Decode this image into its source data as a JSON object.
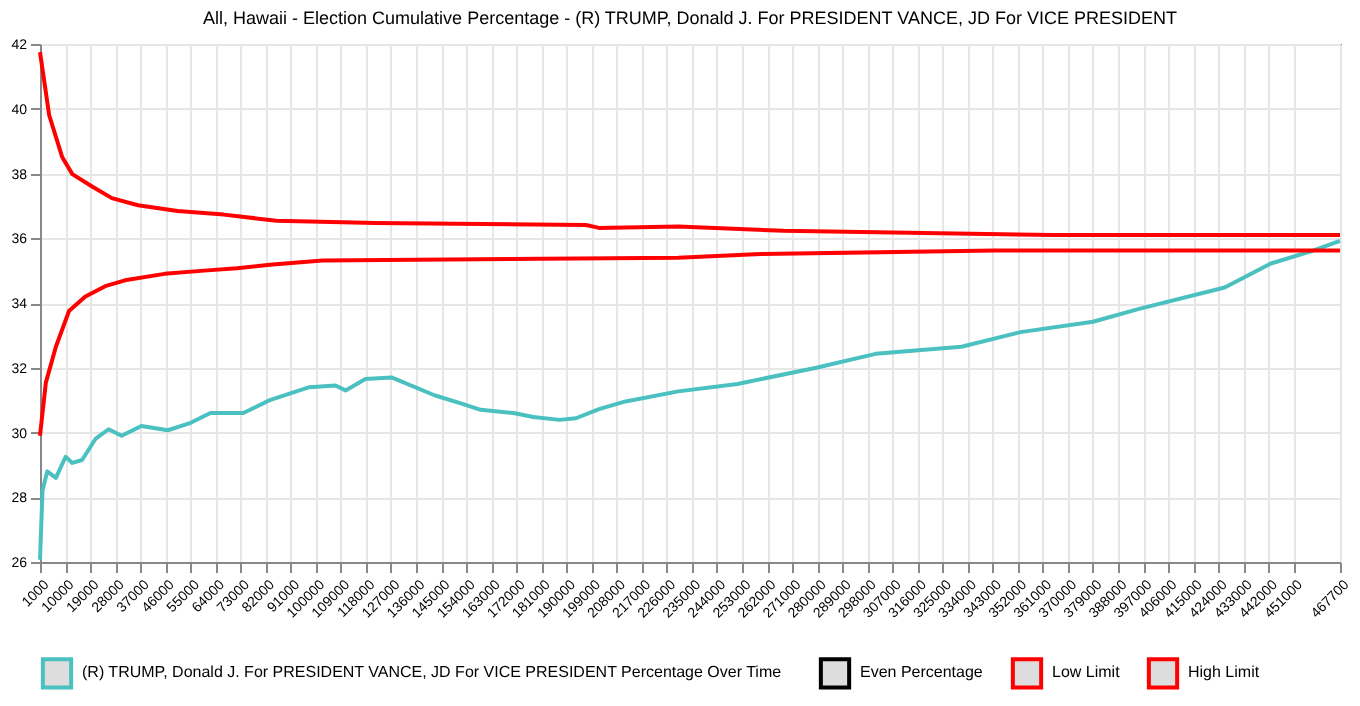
{
  "chart_data": {
    "type": "line",
    "title": "All, Hawaii - Election Cumulative Percentage - (R) TRUMP, Donald J. For PRESIDENT VANCE, JD For VICE PRESIDENT",
    "xlim": [
      1000,
      467700
    ],
    "ylim": [
      26,
      42
    ],
    "yticks": [
      26,
      28,
      30,
      32,
      34,
      36,
      38,
      40,
      42
    ],
    "xticks": [
      1000,
      10000,
      19000,
      28000,
      37000,
      46000,
      55000,
      64000,
      73000,
      82000,
      91000,
      100000,
      109000,
      118000,
      127000,
      136000,
      145000,
      154000,
      163000,
      172000,
      181000,
      190000,
      199000,
      208000,
      217000,
      226000,
      235000,
      244000,
      253000,
      262000,
      271000,
      280000,
      289000,
      298000,
      307000,
      316000,
      325000,
      334000,
      343000,
      352000,
      361000,
      370000,
      379000,
      388000,
      397000,
      406000,
      415000,
      424000,
      433000,
      442000,
      451000,
      467700
    ],
    "grid": true,
    "legend": "bottom",
    "marker": "none",
    "line_style": "solid",
    "series": [
      {
        "name": "(R) TRUMP, Donald J.  For PRESIDENT VANCE, JD  For VICE PRESIDENT Percentage Over Time",
        "color": "#4bc0c0",
        "x": [
          1000,
          1900,
          3600,
          6700,
          10200,
          12600,
          16100,
          20900,
          25600,
          30300,
          37400,
          46900,
          55100,
          62200,
          74000,
          83500,
          97700,
          107100,
          110700,
          117800,
          127200,
          142600,
          152100,
          159200,
          171000,
          178100,
          187500,
          193400,
          201700,
          211200,
          230100,
          251400,
          279700,
          301000,
          331800,
          353000,
          379000,
          395600,
          426300,
          442900,
          457000,
          467700
        ],
        "values": [
          26.07,
          28.2,
          28.8,
          28.6,
          29.25,
          29.06,
          29.15,
          29.8,
          30.1,
          29.9,
          30.2,
          30.07,
          30.3,
          30.6,
          30.6,
          31.0,
          31.4,
          31.45,
          31.3,
          31.65,
          31.7,
          31.15,
          30.9,
          30.7,
          30.6,
          30.48,
          30.39,
          30.44,
          30.72,
          30.96,
          31.27,
          31.5,
          32.0,
          32.43,
          32.65,
          33.1,
          33.42,
          33.82,
          34.48,
          35.22,
          35.59,
          35.92
        ]
      },
      {
        "name": "Even Percentage",
        "color": "#000000"
      },
      {
        "name": "Low Limit",
        "color": "#ff0000",
        "x": [
          1000,
          3100,
          6700,
          11400,
          17300,
          24400,
          31500,
          45700,
          59900,
          71700,
          83500,
          102400,
          230100,
          259700,
          343600,
          467700
        ],
        "values": [
          29.9,
          31.54,
          32.65,
          33.75,
          34.2,
          34.52,
          34.7,
          34.9,
          35.0,
          35.07,
          35.18,
          35.31,
          35.4,
          35.51,
          35.62,
          35.62
        ]
      },
      {
        "name": "High Limit",
        "color": "#ff0000",
        "x": [
          1000,
          4300,
          9000,
          12600,
          19700,
          26800,
          36200,
          50400,
          67000,
          85900,
          121300,
          197000,
          201700,
          230100,
          267900,
          364900,
          467700
        ],
        "values": [
          41.75,
          39.8,
          38.5,
          37.98,
          37.6,
          37.24,
          37.02,
          36.84,
          36.73,
          36.54,
          36.47,
          36.41,
          36.32,
          36.36,
          36.23,
          36.1,
          36.1
        ]
      }
    ]
  }
}
